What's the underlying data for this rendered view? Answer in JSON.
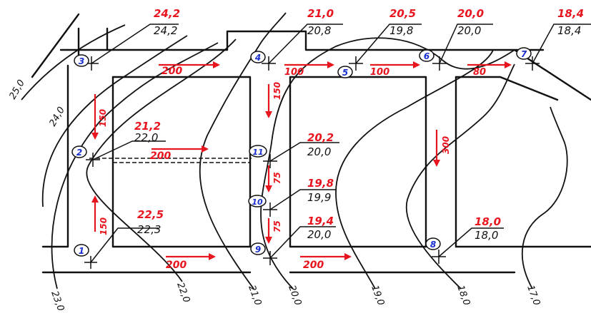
{
  "colors": {
    "red": "#e8141e",
    "black": "#111111",
    "blue": "#1a2fd0"
  },
  "points": [
    {
      "id": "1",
      "red": "22,5",
      "black": "22,3"
    },
    {
      "id": "2",
      "red": "21,2",
      "black": "22,0"
    },
    {
      "id": "3",
      "red": "24,2",
      "black": "24,2"
    },
    {
      "id": "4",
      "red": "21,0",
      "black": "20,8"
    },
    {
      "id": "5",
      "red": "20,5",
      "black": "19,8"
    },
    {
      "id": "6",
      "red": "20,0",
      "black": "20,0"
    },
    {
      "id": "7",
      "red": "18,4",
      "black": "18,4"
    },
    {
      "id": "8",
      "red": "18,0",
      "black": "18,0"
    },
    {
      "id": "9",
      "red": "19,4",
      "black": "20,0"
    },
    {
      "id": "10",
      "red": "19,8",
      "black": "19,9"
    },
    {
      "id": "11",
      "red": "20,2",
      "black": "20,0"
    }
  ],
  "segments": {
    "s_3_4": "200",
    "s_4_5": "100",
    "s_5_6": "100",
    "s_6_7": "80",
    "s_3_2": "150",
    "s_1_2": "150",
    "s_2_11": "200",
    "s_4_11": "150",
    "s_11_10": "75",
    "s_10_9": "75",
    "s_1_9": "200",
    "s_9_8": "200",
    "s_6_8": "300"
  },
  "contours": [
    "25,0",
    "24,0",
    "23,0",
    "22,0",
    "21,0",
    "20,0",
    "19,0",
    "18,0",
    "17,0"
  ]
}
